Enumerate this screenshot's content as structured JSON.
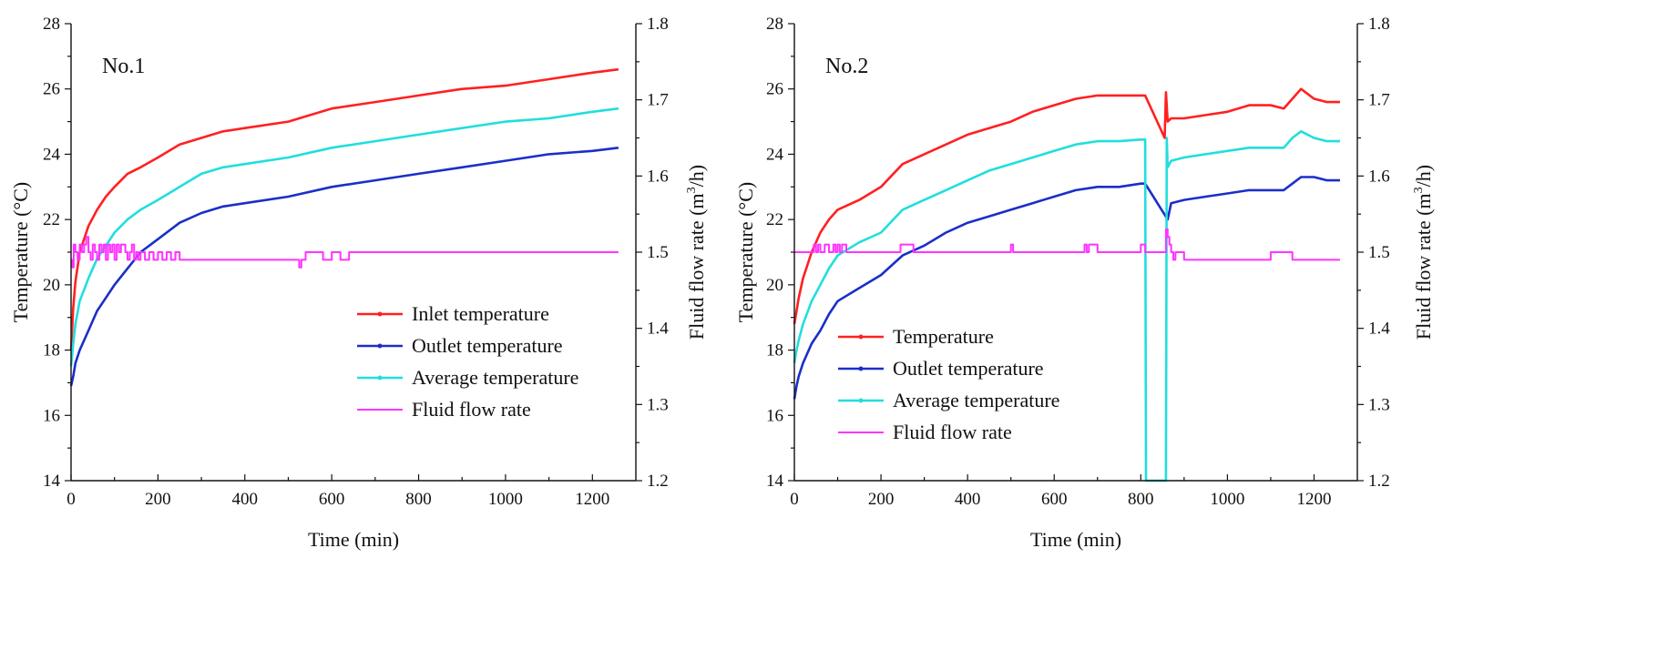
{
  "figure": {
    "colors": {
      "inlet": "#ff2020",
      "outlet": "#1a2fc8",
      "average": "#21dede",
      "flow": "#ff33ff",
      "axis": "#111111"
    }
  },
  "chart_data": [
    {
      "type": "line",
      "title": "No.1",
      "xlabel": "Time (min)",
      "ylabel": "Temperature (°C)",
      "y2label_prefix": "Fluid flow rate (m",
      "y2label_sup": "3",
      "y2label_suffix": "/h)",
      "xlim": [
        0,
        1300
      ],
      "ylim": [
        14,
        28
      ],
      "y2lim": [
        1.2,
        1.8
      ],
      "xticks": [
        0,
        200,
        400,
        600,
        800,
        1000,
        1200
      ],
      "yticks": [
        14,
        16,
        18,
        20,
        22,
        24,
        26,
        28
      ],
      "y2ticks": [
        "1.2",
        "1.3",
        "1.4",
        "1.5",
        "1.6",
        "1.7",
        "1.8"
      ],
      "legend_position": "lower-right",
      "series": [
        {
          "name": "Inlet temperature",
          "key": "inlet",
          "axis": "left",
          "x": [
            0,
            5,
            10,
            20,
            40,
            60,
            80,
            100,
            130,
            160,
            200,
            250,
            300,
            350,
            400,
            500,
            600,
            700,
            800,
            900,
            1000,
            1100,
            1200,
            1260
          ],
          "y": [
            18.0,
            19.3,
            20.1,
            21.0,
            21.8,
            22.3,
            22.7,
            23.0,
            23.4,
            23.6,
            23.9,
            24.3,
            24.5,
            24.7,
            24.8,
            25.0,
            25.4,
            25.6,
            25.8,
            26.0,
            26.1,
            26.3,
            26.5,
            26.6
          ]
        },
        {
          "name": "Outlet temperature",
          "key": "outlet",
          "axis": "left",
          "x": [
            0,
            5,
            10,
            20,
            40,
            60,
            80,
            100,
            130,
            160,
            200,
            250,
            300,
            350,
            400,
            500,
            600,
            700,
            800,
            900,
            1000,
            1100,
            1200,
            1260
          ],
          "y": [
            16.9,
            17.2,
            17.6,
            18.0,
            18.6,
            19.2,
            19.6,
            20.0,
            20.5,
            21.0,
            21.4,
            21.9,
            22.2,
            22.4,
            22.5,
            22.7,
            23.0,
            23.2,
            23.4,
            23.6,
            23.8,
            24.0,
            24.1,
            24.2
          ]
        },
        {
          "name": "Average temperature",
          "key": "average",
          "axis": "left",
          "x": [
            0,
            5,
            10,
            20,
            40,
            60,
            80,
            100,
            130,
            160,
            200,
            250,
            300,
            350,
            400,
            500,
            600,
            700,
            800,
            900,
            1000,
            1100,
            1200,
            1260
          ],
          "y": [
            17.5,
            18.2,
            18.8,
            19.5,
            20.2,
            20.8,
            21.2,
            21.6,
            22.0,
            22.3,
            22.6,
            23.0,
            23.4,
            23.6,
            23.7,
            23.9,
            24.2,
            24.4,
            24.6,
            24.8,
            25.0,
            25.1,
            25.3,
            25.4
          ]
        },
        {
          "name": "Fluid flow rate",
          "key": "flow",
          "axis": "right",
          "x": [
            0,
            3,
            6,
            10,
            15,
            20,
            25,
            30,
            35,
            40,
            45,
            50,
            55,
            60,
            65,
            70,
            75,
            80,
            85,
            90,
            95,
            100,
            105,
            110,
            115,
            120,
            125,
            130,
            135,
            140,
            145,
            150,
            155,
            160,
            170,
            180,
            190,
            200,
            210,
            220,
            230,
            240,
            250,
            300,
            350,
            400,
            450,
            500,
            520,
            525,
            530,
            535,
            540,
            560,
            580,
            600,
            620,
            640,
            660,
            700,
            800,
            900,
            1000,
            1100,
            1200,
            1260
          ],
          "y": [
            1.49,
            1.48,
            1.51,
            1.5,
            1.49,
            1.51,
            1.5,
            1.51,
            1.52,
            1.5,
            1.49,
            1.51,
            1.5,
            1.49,
            1.51,
            1.5,
            1.51,
            1.49,
            1.51,
            1.5,
            1.51,
            1.49,
            1.51,
            1.5,
            1.51,
            1.51,
            1.5,
            1.49,
            1.5,
            1.51,
            1.49,
            1.5,
            1.49,
            1.5,
            1.49,
            1.5,
            1.49,
            1.5,
            1.49,
            1.5,
            1.49,
            1.5,
            1.49,
            1.49,
            1.49,
            1.49,
            1.49,
            1.49,
            1.49,
            1.48,
            1.49,
            1.49,
            1.5,
            1.5,
            1.49,
            1.5,
            1.49,
            1.5,
            1.5,
            1.5,
            1.5,
            1.5,
            1.5,
            1.5,
            1.5,
            1.5
          ]
        }
      ]
    },
    {
      "type": "line",
      "title": "No.2",
      "xlabel": "Time (min)",
      "ylabel": "Temperature (°C)",
      "y2label_prefix": "Fluid flow rate (m",
      "y2label_sup": "3",
      "y2label_suffix": "/h)",
      "xlim": [
        0,
        1300
      ],
      "ylim": [
        14,
        28
      ],
      "y2lim": [
        1.2,
        1.8
      ],
      "xticks": [
        0,
        200,
        400,
        600,
        800,
        1000,
        1200
      ],
      "yticks": [
        14,
        16,
        18,
        20,
        22,
        24,
        26,
        28
      ],
      "y2ticks": [
        "1.2",
        "1.3",
        "1.4",
        "1.5",
        "1.6",
        "1.7",
        "1.8"
      ],
      "legend_position": "lower-left",
      "series": [
        {
          "name": "Temperature",
          "key": "inlet",
          "axis": "left",
          "x": [
            0,
            5,
            10,
            20,
            40,
            60,
            80,
            100,
            150,
            200,
            250,
            300,
            350,
            400,
            450,
            500,
            550,
            600,
            650,
            700,
            750,
            800,
            810,
            855,
            858,
            862,
            870,
            900,
            950,
            1000,
            1050,
            1100,
            1130,
            1150,
            1170,
            1200,
            1230,
            1260
          ],
          "y": [
            18.8,
            19.2,
            19.6,
            20.2,
            21.0,
            21.6,
            22.0,
            22.3,
            22.6,
            23.0,
            23.7,
            24.0,
            24.3,
            24.6,
            24.8,
            25.0,
            25.3,
            25.5,
            25.7,
            25.8,
            25.8,
            25.8,
            25.8,
            24.5,
            25.9,
            25.0,
            25.1,
            25.1,
            25.2,
            25.3,
            25.5,
            25.5,
            25.4,
            25.7,
            26.0,
            25.7,
            25.6,
            25.6
          ]
        },
        {
          "name": "Outlet temperature",
          "key": "outlet",
          "axis": "left",
          "x": [
            0,
            5,
            10,
            20,
            40,
            60,
            80,
            100,
            150,
            200,
            250,
            300,
            350,
            400,
            450,
            500,
            550,
            600,
            650,
            700,
            750,
            800,
            810,
            862,
            870,
            900,
            950,
            1000,
            1050,
            1100,
            1130,
            1150,
            1170,
            1200,
            1230,
            1260
          ],
          "y": [
            16.5,
            16.9,
            17.2,
            17.6,
            18.2,
            18.6,
            19.1,
            19.5,
            19.9,
            20.3,
            20.9,
            21.2,
            21.6,
            21.9,
            22.1,
            22.3,
            22.5,
            22.7,
            22.9,
            23.0,
            23.0,
            23.1,
            23.1,
            22.0,
            22.5,
            22.6,
            22.7,
            22.8,
            22.9,
            22.9,
            22.9,
            23.1,
            23.3,
            23.3,
            23.2,
            23.2
          ]
        },
        {
          "name": "Average temperature",
          "key": "average",
          "axis": "left",
          "x": [
            0,
            5,
            10,
            20,
            40,
            60,
            80,
            100,
            150,
            200,
            250,
            300,
            350,
            400,
            450,
            500,
            550,
            600,
            650,
            700,
            750,
            800,
            810,
            812,
            830,
            858,
            860,
            862,
            870,
            900,
            950,
            1000,
            1050,
            1100,
            1130,
            1150,
            1170,
            1200,
            1230,
            1260
          ],
          "y": [
            17.6,
            18.0,
            18.3,
            18.8,
            19.5,
            20.0,
            20.5,
            20.9,
            21.3,
            21.6,
            22.3,
            22.6,
            22.9,
            23.2,
            23.5,
            23.7,
            23.9,
            24.1,
            24.3,
            24.4,
            24.4,
            24.45,
            24.45,
            14.0,
            14.0,
            14.0,
            24.5,
            23.6,
            23.8,
            23.9,
            24.0,
            24.1,
            24.2,
            24.2,
            24.2,
            24.5,
            24.7,
            24.5,
            24.4,
            24.4
          ]
        },
        {
          "name": "Fluid flow rate",
          "key": "flow",
          "axis": "right",
          "x": [
            0,
            10,
            20,
            30,
            40,
            45,
            50,
            55,
            60,
            70,
            80,
            90,
            95,
            100,
            105,
            110,
            120,
            150,
            200,
            240,
            245,
            260,
            270,
            275,
            300,
            350,
            400,
            450,
            495,
            500,
            505,
            550,
            600,
            650,
            670,
            675,
            680,
            700,
            750,
            790,
            800,
            810,
            855,
            858,
            862,
            866,
            870,
            875,
            880,
            900,
            930,
            960,
            1000,
            1050,
            1100,
            1140,
            1150,
            1200,
            1260
          ],
          "y": [
            1.5,
            1.5,
            1.5,
            1.5,
            1.5,
            1.51,
            1.5,
            1.51,
            1.5,
            1.51,
            1.5,
            1.51,
            1.5,
            1.51,
            1.5,
            1.51,
            1.5,
            1.5,
            1.5,
            1.5,
            1.51,
            1.51,
            1.51,
            1.5,
            1.5,
            1.5,
            1.5,
            1.5,
            1.5,
            1.51,
            1.5,
            1.5,
            1.5,
            1.5,
            1.51,
            1.5,
            1.51,
            1.5,
            1.5,
            1.5,
            1.51,
            1.5,
            1.5,
            1.53,
            1.52,
            1.51,
            1.5,
            1.49,
            1.5,
            1.49,
            1.49,
            1.49,
            1.49,
            1.49,
            1.5,
            1.5,
            1.49,
            1.49,
            1.49
          ]
        }
      ]
    }
  ]
}
